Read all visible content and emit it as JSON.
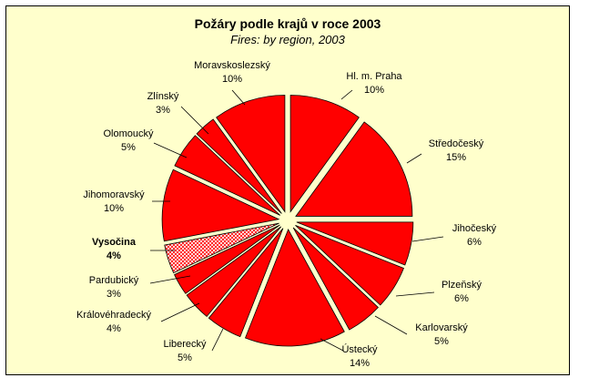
{
  "chart_data": {
    "type": "pie",
    "title": "Požáry podle krajů v roce 2003",
    "subtitle": "Fires: by region, 2003",
    "colors": {
      "fill": "#ff0000",
      "highlight_fill": "#ff9999",
      "background": "#ffffcc",
      "stroke": "#000000"
    },
    "slices": [
      {
        "label": "Hl. m. Praha",
        "value": 10,
        "text": "10%"
      },
      {
        "label": "Středočeský",
        "value": 15,
        "text": "15%"
      },
      {
        "label": "Jihočeský",
        "value": 6,
        "text": "6%"
      },
      {
        "label": "Plzeňský",
        "value": 6,
        "text": "6%"
      },
      {
        "label": "Karlovarský",
        "value": 5,
        "text": "5%"
      },
      {
        "label": "Ústecký",
        "value": 14,
        "text": "14%"
      },
      {
        "label": "Liberecký",
        "value": 5,
        "text": "5%"
      },
      {
        "label": "Královéhradecký",
        "value": 4,
        "text": "4%"
      },
      {
        "label": "Pardubický",
        "value": 3,
        "text": "3%"
      },
      {
        "label": "Vysočina",
        "value": 4,
        "text": "4%",
        "highlight": true
      },
      {
        "label": "Jihomoravský",
        "value": 10,
        "text": "10%"
      },
      {
        "label": "Olomoucký",
        "value": 5,
        "text": "5%"
      },
      {
        "label": "Zlínský",
        "value": 3,
        "text": "3%"
      },
      {
        "label": "Moravskoslezský",
        "value": 10,
        "text": "10%"
      }
    ]
  }
}
